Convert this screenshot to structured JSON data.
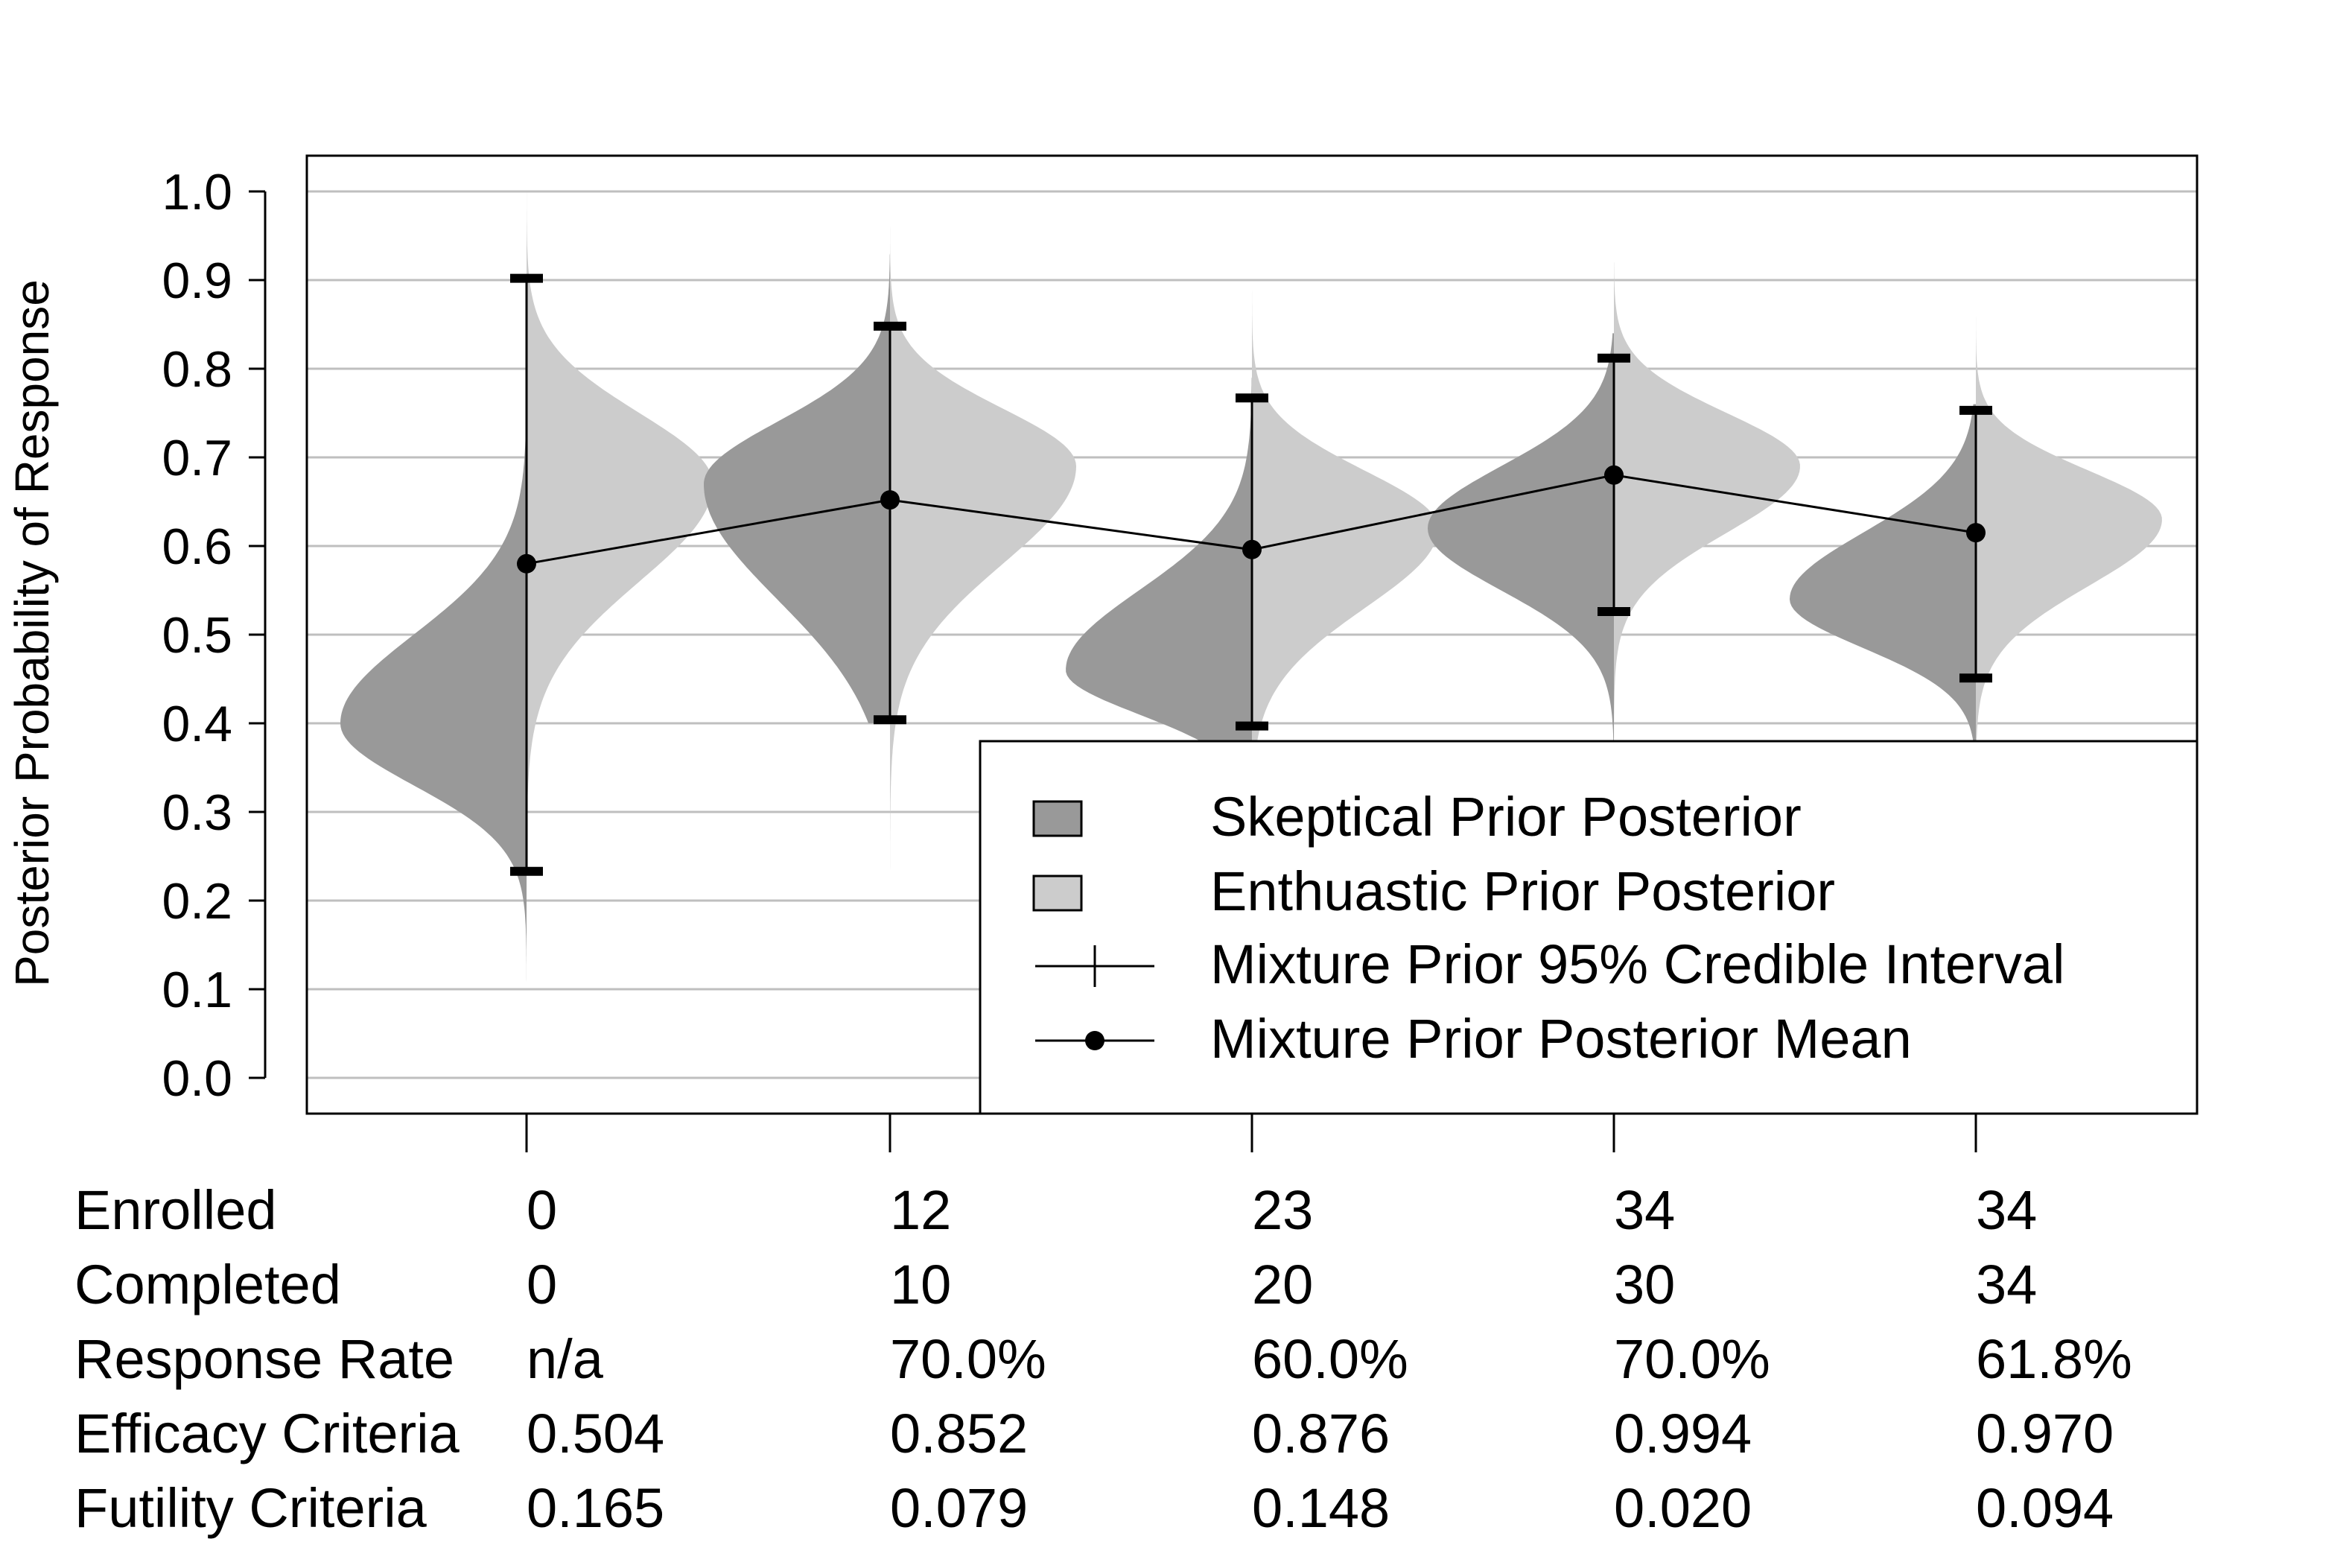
{
  "chart_data": {
    "type": "violin",
    "ylabel": "Posterior Probability of Response",
    "ylim": [
      0,
      1
    ],
    "yticks": [
      "0.0",
      "0.1",
      "0.2",
      "0.3",
      "0.4",
      "0.5",
      "0.6",
      "0.7",
      "0.8",
      "0.9",
      "1.0"
    ],
    "grid": "horizontal",
    "legend_placement": "bottom-right",
    "legend": [
      {
        "kind": "skeptical",
        "label": "Skeptical Prior Posterior"
      },
      {
        "kind": "enthusiastic",
        "label": "Enthuastic Prior Posterior"
      },
      {
        "kind": "interval",
        "label": "Mixture Prior 95% Credible Interval"
      },
      {
        "kind": "mean",
        "label": "Mixture Prior Posterior Mean"
      }
    ],
    "colors": {
      "skeptical": "#999999",
      "enthusiastic": "#cccccc",
      "line": "#000000",
      "grid": "#bfbfbf"
    },
    "x": [
      0,
      12,
      23,
      34,
      34
    ],
    "looks": [
      {
        "mean": 0.58,
        "lower": 0.233,
        "upper": 0.902,
        "skeptical": {
          "mode": 0.4,
          "sd_low": 0.07,
          "sd_high": 0.1,
          "min": 0.0,
          "max": 1.0
        },
        "enthusiastic": {
          "mode": 0.67,
          "sd_low": 0.11,
          "sd_high": 0.08,
          "min": 0.0,
          "max": 1.0
        }
      },
      {
        "mean": 0.652,
        "lower": 0.404,
        "upper": 0.848,
        "skeptical": {
          "mode": 0.67,
          "sd_low": 0.13,
          "sd_high": 0.07,
          "min": 0.4,
          "max": 0.93
        },
        "enthusiastic": {
          "mode": 0.69,
          "sd_low": 0.11,
          "sd_high": 0.065,
          "min": 0.17,
          "max": 0.97
        }
      },
      {
        "mean": 0.596,
        "lower": 0.397,
        "upper": 0.767,
        "skeptical": {
          "mode": 0.46,
          "sd_low": 0.05,
          "sd_high": 0.09,
          "min": 0.37,
          "max": 0.79
        },
        "enthusiastic": {
          "mode": 0.62,
          "sd_low": 0.09,
          "sd_high": 0.065,
          "min": 0.37,
          "max": 0.9
        }
      },
      {
        "mean": 0.68,
        "lower": 0.526,
        "upper": 0.812,
        "skeptical": {
          "mode": 0.62,
          "sd_low": 0.07,
          "sd_high": 0.07,
          "min": 0.38,
          "max": 0.84
        },
        "enthusiastic": {
          "mode": 0.69,
          "sd_low": 0.075,
          "sd_high": 0.06,
          "min": 0.38,
          "max": 0.92
        }
      },
      {
        "mean": 0.615,
        "lower": 0.451,
        "upper": 0.753,
        "skeptical": {
          "mode": 0.54,
          "sd_low": 0.055,
          "sd_high": 0.075,
          "min": 0.38,
          "max": 0.76
        },
        "enthusiastic": {
          "mode": 0.63,
          "sd_low": 0.075,
          "sd_high": 0.055,
          "min": 0.38,
          "max": 0.87
        }
      }
    ],
    "table": {
      "rows": [
        {
          "label": "Enrolled",
          "values": [
            "0",
            "12",
            "23",
            "34",
            "34"
          ]
        },
        {
          "label": "Completed",
          "values": [
            "0",
            "10",
            "20",
            "30",
            "34"
          ]
        },
        {
          "label": "Response Rate",
          "values": [
            "n/a",
            "70.0%",
            "60.0%",
            "70.0%",
            "61.8%"
          ]
        },
        {
          "label": "Efficacy Criteria",
          "values": [
            "0.504",
            "0.852",
            "0.876",
            "0.994",
            "0.970"
          ]
        },
        {
          "label": "Futility Criteria",
          "values": [
            "0.165",
            "0.079",
            "0.148",
            "0.020",
            "0.094"
          ]
        }
      ]
    }
  }
}
